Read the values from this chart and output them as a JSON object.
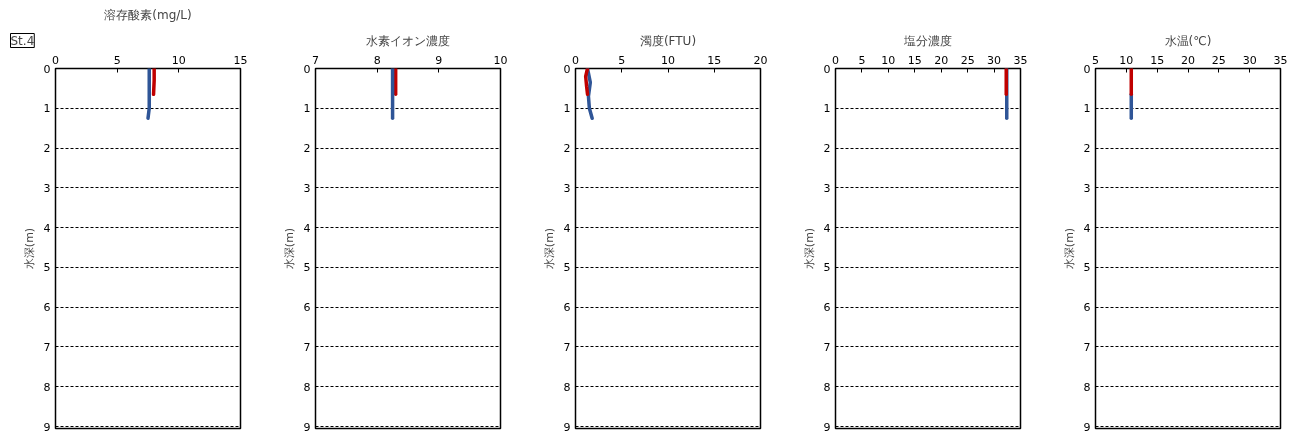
{
  "chart_data": [
    {
      "type": "line",
      "title": "溶存酸素(mg/L)",
      "annotations": [
        "St.4"
      ],
      "ylabel": "水深(m)",
      "xlim": [
        0,
        15
      ],
      "xticks": [
        0,
        5,
        10,
        15
      ],
      "ylim": [
        9.05,
        0
      ],
      "yticks": [
        0,
        1,
        2,
        3,
        4,
        5,
        6,
        7,
        8,
        9
      ],
      "grid": "y",
      "line_style": "solid",
      "series": [
        {
          "color": "#c00000",
          "x": [
            8.0,
            8.0,
            7.95
          ],
          "values": [
            0,
            0.3,
            0.65
          ]
        },
        {
          "color": "#2f5597",
          "x": [
            7.6,
            7.6,
            7.6,
            7.5
          ],
          "values": [
            0,
            0.5,
            1.0,
            1.25
          ]
        }
      ]
    },
    {
      "type": "line",
      "title": "水素イオン濃度",
      "ylabel": "水深(m)",
      "xlim": [
        7,
        10
      ],
      "xticks": [
        7,
        8,
        9,
        10
      ],
      "ylim": [
        9.05,
        0
      ],
      "yticks": [
        0,
        1,
        2,
        3,
        4,
        5,
        6,
        7,
        8,
        9
      ],
      "grid": "y",
      "line_style": "solid",
      "series": [
        {
          "color": "#c00000",
          "x": [
            8.3,
            8.3
          ],
          "values": [
            0,
            0.65
          ]
        },
        {
          "color": "#2f5597",
          "x": [
            8.25,
            8.25
          ],
          "values": [
            0,
            1.25
          ]
        }
      ]
    },
    {
      "type": "line",
      "title": "濁度(FTU)",
      "ylabel": "水深(m)",
      "xlim": [
        0,
        20
      ],
      "xticks": [
        0,
        5,
        10,
        15,
        20
      ],
      "ylim": [
        9.05,
        0
      ],
      "yticks": [
        0,
        1,
        2,
        3,
        4,
        5,
        6,
        7,
        8,
        9
      ],
      "grid": "y",
      "line_style": "solid",
      "series": [
        {
          "color": "#2f5597",
          "x": [
            1.3,
            1.6,
            1.4,
            1.5,
            1.8
          ],
          "values": [
            0,
            0.35,
            0.7,
            1.0,
            1.25
          ]
        },
        {
          "color": "#c00000",
          "x": [
            1.3,
            1.1,
            1.2,
            1.3
          ],
          "values": [
            0,
            0.2,
            0.45,
            0.65
          ]
        }
      ]
    },
    {
      "type": "line",
      "title": "塩分濃度",
      "ylabel": "水深(m)",
      "xlim": [
        0,
        35
      ],
      "xticks": [
        0,
        5,
        10,
        15,
        20,
        25,
        30,
        35
      ],
      "ylim": [
        9.05,
        0
      ],
      "yticks": [
        0,
        1,
        2,
        3,
        4,
        5,
        6,
        7,
        8,
        9
      ],
      "grid": "y",
      "line_style": "solid",
      "series": [
        {
          "color": "#2f5597",
          "x": [
            32.4,
            32.4
          ],
          "values": [
            0,
            1.25
          ]
        },
        {
          "color": "#c00000",
          "x": [
            32.3,
            32.3
          ],
          "values": [
            0,
            0.65
          ]
        }
      ]
    },
    {
      "type": "line",
      "title": "水温(℃)",
      "ylabel": "水深(m)",
      "xlim": [
        5,
        35
      ],
      "xticks": [
        5,
        10,
        15,
        20,
        25,
        30,
        35
      ],
      "ylim": [
        9.05,
        0
      ],
      "yticks": [
        0,
        1,
        2,
        3,
        4,
        5,
        6,
        7,
        8,
        9
      ],
      "grid": "y",
      "line_style": "solid",
      "series": [
        {
          "color": "#2f5597",
          "x": [
            10.8,
            10.8
          ],
          "values": [
            0.65,
            1.25
          ]
        },
        {
          "color": "#c00000",
          "x": [
            10.8,
            10.8
          ],
          "values": [
            0,
            0.65
          ]
        }
      ]
    }
  ]
}
